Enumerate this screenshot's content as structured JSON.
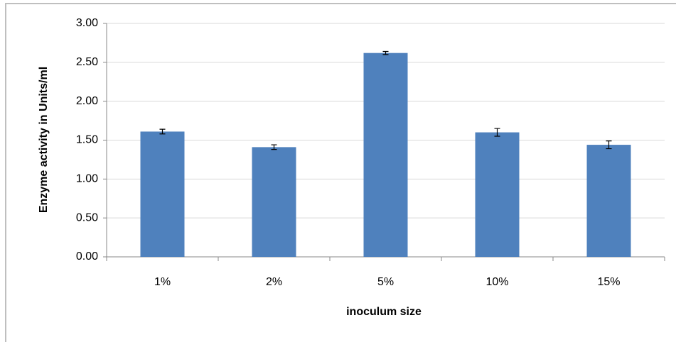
{
  "chart_data": {
    "type": "bar",
    "x_label": "inoculum  size",
    "y_label": "Enzyme activity in Units/ml",
    "categories": [
      "1%",
      "2%",
      "5%",
      "10%",
      "15%"
    ],
    "values": [
      1.61,
      1.41,
      2.62,
      1.6,
      1.44
    ],
    "errors": [
      0.03,
      0.03,
      0.02,
      0.05,
      0.05
    ],
    "color": "#4f81bd",
    "ylim": [
      0,
      3
    ],
    "yticks": [
      {
        "value": 0,
        "label": "0.00"
      },
      {
        "value": 0.5,
        "label": "0.50"
      },
      {
        "value": 1,
        "label": "1.00"
      },
      {
        "value": 1.5,
        "label": "1.50"
      },
      {
        "value": 2,
        "label": "2.00"
      },
      {
        "value": 2.5,
        "label": "2.50"
      },
      {
        "value": 3,
        "label": "3.00"
      }
    ],
    "grid": true
  }
}
